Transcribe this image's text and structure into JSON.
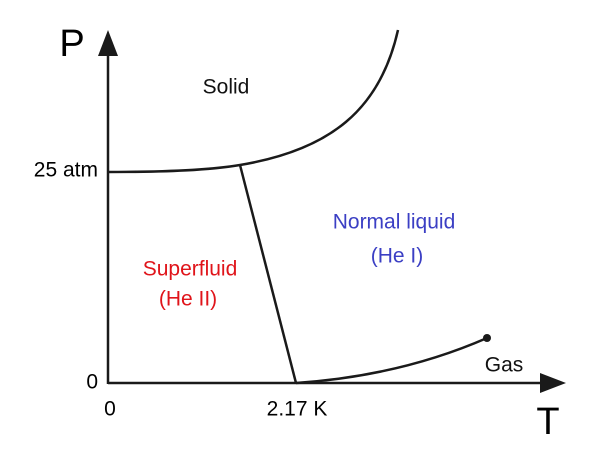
{
  "axes": {
    "y_label": "P",
    "x_label": "T",
    "y_ticks": [
      "25 atm",
      "0"
    ],
    "x_ticks": [
      "0",
      "2.17 K"
    ]
  },
  "regions": {
    "solid": "Solid",
    "normal_liquid": [
      "Normal liquid",
      "(He I)"
    ],
    "superfluid": [
      "Superfluid",
      "(He II)"
    ],
    "gas": "Gas"
  }
}
